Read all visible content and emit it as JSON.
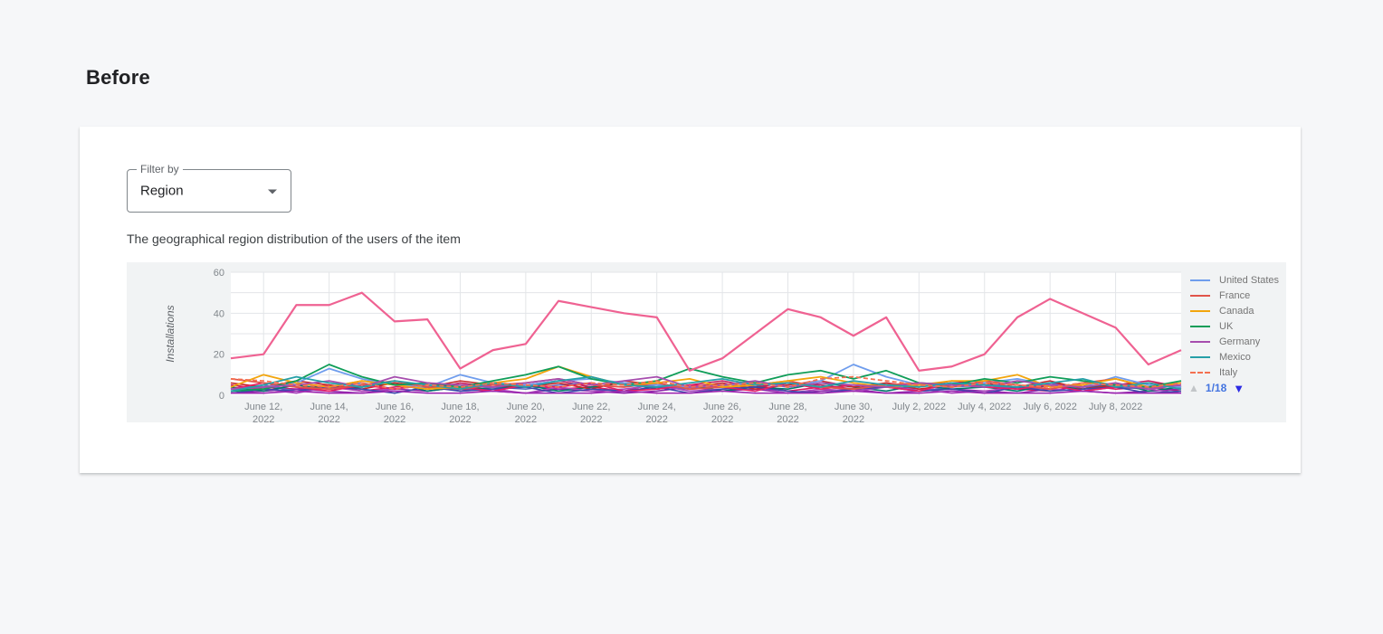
{
  "page": {
    "title": "Before"
  },
  "filter": {
    "label": "Filter by",
    "value": "Region",
    "caret_icon": "caret-down"
  },
  "card": {
    "description": "The geographical region distribution of the users of the item"
  },
  "chart_data": {
    "type": "line",
    "title": "",
    "xlabel": "",
    "ylabel": "Installations",
    "ylim": [
      0,
      60
    ],
    "y_ticks": [
      0,
      20,
      40,
      60
    ],
    "y_gridline_step": 10,
    "grid": true,
    "legend_position": "right",
    "x": [
      "June 11, 2022",
      "June 12, 2022",
      "June 13, 2022",
      "June 14, 2022",
      "June 15, 2022",
      "June 16, 2022",
      "June 17, 2022",
      "June 18, 2022",
      "June 19, 2022",
      "June 20, 2022",
      "June 21, 2022",
      "June 22, 2022",
      "June 23, 2022",
      "June 24, 2022",
      "June 25, 2022",
      "June 26, 2022",
      "June 27, 2022",
      "June 28, 2022",
      "June 29, 2022",
      "June 30, 2022",
      "July 1, 2022",
      "July 2, 2022",
      "July 3, 2022",
      "July 4, 2022",
      "July 5, 2022",
      "July 6, 2022",
      "July 7, 2022",
      "July 8, 2022",
      "July 9, 2022",
      "July 10, 2022"
    ],
    "x_tick_labels": [
      {
        "i": 1,
        "l1": "June 12,",
        "l2": "2022"
      },
      {
        "i": 3,
        "l1": "June 14,",
        "l2": "2022"
      },
      {
        "i": 5,
        "l1": "June 16,",
        "l2": "2022"
      },
      {
        "i": 7,
        "l1": "June 18,",
        "l2": "2022"
      },
      {
        "i": 9,
        "l1": "June 20,",
        "l2": "2022"
      },
      {
        "i": 11,
        "l1": "June 22,",
        "l2": "2022"
      },
      {
        "i": 13,
        "l1": "June 24,",
        "l2": "2022"
      },
      {
        "i": 15,
        "l1": "June 26,",
        "l2": "2022"
      },
      {
        "i": 17,
        "l1": "June 28,",
        "l2": "2022"
      },
      {
        "i": 19,
        "l1": "June 30,",
        "l2": "2022"
      },
      {
        "i": 21,
        "l1": "July 2, 2022",
        "l2": ""
      },
      {
        "i": 23,
        "l1": "July 4, 2022",
        "l2": ""
      },
      {
        "i": 25,
        "l1": "July 6, 2022",
        "l2": ""
      },
      {
        "i": 27,
        "l1": "July 8, 2022",
        "l2": ""
      }
    ],
    "highlight_series": {
      "name": "",
      "color": "#ef6292",
      "values": [
        18,
        20,
        44,
        44,
        50,
        36,
        37,
        13,
        22,
        25,
        46,
        43,
        40,
        38,
        12,
        18,
        30,
        42,
        38,
        29,
        38,
        12,
        14,
        20,
        38,
        47,
        40,
        33,
        15,
        22
      ]
    },
    "series": [
      {
        "name": "United States",
        "color": "#6f9ded",
        "dashed": false,
        "values": [
          3,
          4,
          6,
          13,
          8,
          5,
          4,
          10,
          6,
          5,
          7,
          8,
          6,
          5,
          4,
          5,
          6,
          4,
          7,
          15,
          9,
          5,
          4,
          6,
          8,
          5,
          4,
          9,
          5,
          4
        ]
      },
      {
        "name": "France",
        "color": "#e0544a",
        "dashed": false,
        "values": [
          8,
          6,
          4,
          3,
          5,
          7,
          4,
          3,
          5,
          6,
          8,
          5,
          4,
          6,
          3,
          4,
          5,
          7,
          4,
          3,
          5,
          6,
          4,
          7,
          5,
          3,
          6,
          8,
          4,
          5
        ]
      },
      {
        "name": "Canada",
        "color": "#f2a50c",
        "dashed": false,
        "values": [
          4,
          10,
          6,
          4,
          7,
          5,
          3,
          4,
          6,
          8,
          14,
          9,
          5,
          6,
          8,
          4,
          5,
          7,
          9,
          6,
          4,
          5,
          7,
          7,
          10,
          4,
          5,
          8,
          4,
          6
        ]
      },
      {
        "name": "UK",
        "color": "#0f9d58",
        "dashed": false,
        "values": [
          2,
          3,
          7,
          15,
          9,
          5,
          6,
          4,
          7,
          10,
          14,
          8,
          5,
          7,
          13,
          9,
          6,
          10,
          12,
          8,
          12,
          6,
          5,
          8,
          6,
          9,
          7,
          5,
          4,
          7
        ]
      },
      {
        "name": "Germany",
        "color": "#a64dae",
        "dashed": false,
        "values": [
          3,
          4,
          5,
          7,
          4,
          9,
          6,
          5,
          4,
          6,
          8,
          5,
          7,
          9,
          4,
          5,
          7,
          4,
          6,
          5,
          4,
          6,
          5,
          4,
          7,
          5,
          4,
          6,
          3,
          5
        ]
      },
      {
        "name": "Mexico",
        "color": "#26a0a8",
        "dashed": false,
        "values": [
          2,
          5,
          9,
          6,
          4,
          7,
          5,
          3,
          6,
          4,
          7,
          9,
          5,
          4,
          6,
          8,
          5,
          6,
          4,
          7,
          5,
          4,
          6,
          5,
          4,
          6,
          8,
          4,
          6,
          3
        ]
      },
      {
        "name": "Italy",
        "color": "#f47050",
        "dashed": true,
        "values": [
          8,
          7,
          5,
          4,
          6,
          3,
          5,
          4,
          6,
          5,
          4,
          6,
          5,
          7,
          4,
          5,
          6,
          4,
          8,
          9,
          7,
          5,
          4,
          6,
          5,
          4,
          6,
          5,
          4,
          6
        ]
      }
    ],
    "background_series": [
      {
        "color": "#c2185b",
        "values": [
          5,
          3,
          6,
          4,
          7,
          5,
          3,
          6,
          4,
          5,
          7,
          4,
          6,
          3,
          5,
          7,
          4,
          6,
          5,
          3,
          6,
          4,
          7,
          5,
          3,
          6,
          4,
          5,
          7,
          4
        ]
      },
      {
        "color": "#d81b60",
        "values": [
          2,
          4,
          3,
          5,
          2,
          4,
          6,
          3,
          2,
          5,
          3,
          4,
          2,
          6,
          3,
          4,
          5,
          2,
          4,
          3,
          5,
          2,
          4,
          6,
          3,
          2,
          5,
          3,
          4,
          2
        ]
      },
      {
        "color": "#8e24aa",
        "values": [
          1,
          2,
          3,
          2,
          1,
          3,
          2,
          4,
          2,
          1,
          3,
          2,
          1,
          2,
          4,
          2,
          3,
          1,
          2,
          3,
          1,
          2,
          3,
          2,
          1,
          3,
          2,
          1,
          2,
          3
        ]
      },
      {
        "color": "#5c6bc0",
        "values": [
          3,
          5,
          2,
          4,
          6,
          3,
          5,
          2,
          4,
          3,
          5,
          6,
          2,
          4,
          3,
          5,
          2,
          6,
          4,
          3,
          5,
          2,
          4,
          5,
          3,
          6,
          2,
          4,
          3,
          5
        ]
      },
      {
        "color": "#00796b",
        "values": [
          4,
          2,
          5,
          3,
          4,
          6,
          2,
          4,
          3,
          5,
          2,
          4,
          6,
          3,
          5,
          2,
          4,
          3,
          6,
          4,
          2,
          5,
          3,
          4,
          2,
          5,
          3,
          6,
          2,
          4
        ]
      },
      {
        "color": "#ab47bc",
        "values": [
          2,
          3,
          1,
          4,
          2,
          3,
          5,
          2,
          3,
          1,
          4,
          2,
          3,
          5,
          2,
          3,
          4,
          1,
          3,
          2,
          4,
          3,
          1,
          2,
          4,
          3,
          2,
          5,
          3,
          1
        ]
      },
      {
        "color": "#c62828",
        "values": [
          6,
          4,
          7,
          5,
          3,
          6,
          4,
          7,
          5,
          4,
          6,
          3,
          7,
          5,
          4,
          6,
          3,
          5,
          7,
          4,
          6,
          3,
          5,
          6,
          4,
          7,
          3,
          5,
          6,
          4
        ]
      },
      {
        "color": "#3949ab",
        "values": [
          1,
          3,
          2,
          4,
          3,
          1,
          4,
          2,
          3,
          4,
          1,
          3,
          2,
          4,
          1,
          3,
          4,
          2,
          1,
          3,
          4,
          2,
          3,
          1,
          4,
          2,
          3,
          4,
          1,
          2
        ]
      },
      {
        "color": "#e91e63",
        "values": [
          3,
          6,
          4,
          2,
          5,
          3,
          6,
          4,
          2,
          5,
          4,
          6,
          2,
          3,
          5,
          4,
          2,
          6,
          3,
          5,
          4,
          2,
          6,
          4,
          3,
          5,
          2,
          4,
          6,
          3
        ]
      },
      {
        "color": "#9c27b0",
        "values": [
          1,
          1,
          2,
          1,
          1,
          2,
          1,
          1,
          2,
          1,
          1,
          1,
          2,
          1,
          1,
          2,
          1,
          1,
          1,
          2,
          1,
          1,
          2,
          1,
          1,
          1,
          2,
          1,
          1,
          1
        ]
      }
    ],
    "legend": {
      "pager_up_icon": "triangle-up",
      "page_label": "1/18",
      "pager_down_icon": "triangle-down"
    },
    "colors": {
      "panel_bg": "#f1f3f4",
      "plot_bg": "#ffffff",
      "gridline": "#e3e5e8",
      "tick_text": "#80868b",
      "axis_title_text": "#5f6368"
    }
  }
}
